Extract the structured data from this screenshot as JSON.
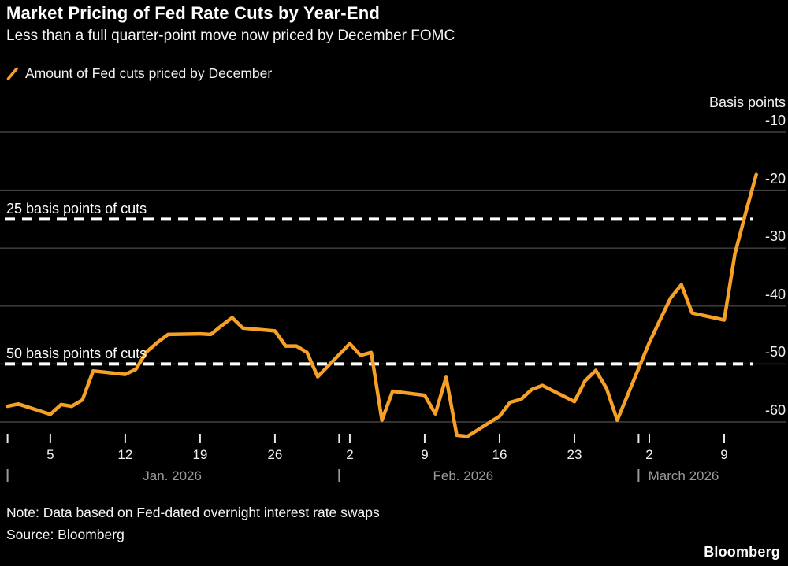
{
  "header": {
    "title": "Market Pricing of Fed Rate Cuts by Year-End",
    "subtitle": "Less than a full quarter-point move now priced by December FOMC"
  },
  "legend": {
    "marker": "orange-slash",
    "label": "Amount of Fed cuts priced by December"
  },
  "footer": {
    "note": "Note: Data based on Fed-dated overnight interest rate swaps",
    "source": "Source: Bloomberg",
    "logo": "Bloomberg"
  },
  "colors": {
    "background": "#000000",
    "line": "#F6A028",
    "grid": "#424242",
    "reference_line": "#FFFFFF",
    "text_primary": "#FFFFFF",
    "text_secondary": "#F0F0F0",
    "text_muted": "#9A9A9A"
  },
  "chart_data": {
    "type": "line",
    "title": "Market Pricing of Fed Rate Cuts by Year-End",
    "y_axis_title": "Basis points",
    "ylim": [
      -65,
      -8
    ],
    "grid": true,
    "y_ticks": [
      {
        "label": "-10",
        "value": -10
      },
      {
        "label": "-20",
        "value": -20
      },
      {
        "label": "-30",
        "value": -30
      },
      {
        "label": "-40",
        "value": -40
      },
      {
        "label": "-50",
        "value": -50
      },
      {
        "label": "-60",
        "value": -60
      }
    ],
    "reference_lines": [
      {
        "label": "25 basis points of cuts",
        "value": -25
      },
      {
        "label": "50 basis points of cuts",
        "value": -50
      }
    ],
    "x_axis": {
      "start": "Jan. 1, 2026",
      "end": "March 12, 2026",
      "week_ticks": [
        {
          "label": "5",
          "day": 4
        },
        {
          "label": "12",
          "day": 11
        },
        {
          "label": "19",
          "day": 18
        },
        {
          "label": "26",
          "day": 25
        },
        {
          "label": "2",
          "day": 32
        },
        {
          "label": "9",
          "day": 39
        },
        {
          "label": "16",
          "day": 46
        },
        {
          "label": "23",
          "day": 53
        },
        {
          "label": "2",
          "day": 60
        },
        {
          "label": "9",
          "day": 67
        }
      ],
      "boundary_tick_days": [
        0,
        31,
        59
      ],
      "months": [
        {
          "label": "Jan. 2026",
          "tick_day": 0,
          "anchor_day": 15.4,
          "align": "center"
        },
        {
          "label": "Feb. 2026",
          "tick_day": 31,
          "anchor_day": 42.6,
          "align": "center"
        },
        {
          "label": "March 2026",
          "tick_day": 59,
          "anchor_day": 59.9,
          "align": "left"
        }
      ]
    },
    "series": [
      {
        "name": "Amount of Fed cuts priced by December",
        "color": "#F6A028",
        "points": [
          {
            "date": "Jan 1",
            "day": 0,
            "bp": -57.3
          },
          {
            "date": "Jan 2",
            "day": 1,
            "bp": -56.9
          },
          {
            "date": "Jan 5",
            "day": 4,
            "bp": -58.7
          },
          {
            "date": "Jan 6",
            "day": 5,
            "bp": -57.0
          },
          {
            "date": "Jan 7",
            "day": 6,
            "bp": -57.3
          },
          {
            "date": "Jan 8",
            "day": 7,
            "bp": -56.2
          },
          {
            "date": "Jan 9",
            "day": 8,
            "bp": -51.2
          },
          {
            "date": "Jan 12",
            "day": 11,
            "bp": -51.8
          },
          {
            "date": "Jan 13",
            "day": 12,
            "bp": -50.9
          },
          {
            "date": "Jan 14",
            "day": 13,
            "bp": -47.9
          },
          {
            "date": "Jan 15",
            "day": 14,
            "bp": -46.3
          },
          {
            "date": "Jan 16",
            "day": 15,
            "bp": -44.9
          },
          {
            "date": "Jan 19",
            "day": 18,
            "bp": -44.8
          },
          {
            "date": "Jan 20",
            "day": 19,
            "bp": -44.9
          },
          {
            "date": "Jan 21",
            "day": 20,
            "bp": -43.4
          },
          {
            "date": "Jan 22",
            "day": 21,
            "bp": -42.0
          },
          {
            "date": "Jan 23",
            "day": 22,
            "bp": -43.8
          },
          {
            "date": "Jan 26",
            "day": 25,
            "bp": -44.3
          },
          {
            "date": "Jan 27",
            "day": 26,
            "bp": -46.9
          },
          {
            "date": "Jan 28",
            "day": 27,
            "bp": -46.9
          },
          {
            "date": "Jan 29",
            "day": 28,
            "bp": -48.0
          },
          {
            "date": "Jan 30",
            "day": 29,
            "bp": -52.2
          },
          {
            "date": "Feb 2",
            "day": 32,
            "bp": -46.5
          },
          {
            "date": "Feb 3",
            "day": 33,
            "bp": -48.5
          },
          {
            "date": "Feb 4",
            "day": 34,
            "bp": -48.0
          },
          {
            "date": "Feb 5",
            "day": 35,
            "bp": -59.7
          },
          {
            "date": "Feb 6",
            "day": 36,
            "bp": -54.7
          },
          {
            "date": "Feb 9",
            "day": 39,
            "bp": -55.4
          },
          {
            "date": "Feb 10",
            "day": 40,
            "bp": -58.6
          },
          {
            "date": "Feb 11",
            "day": 41,
            "bp": -52.3
          },
          {
            "date": "Feb 12",
            "day": 42,
            "bp": -62.3
          },
          {
            "date": "Feb 13",
            "day": 43,
            "bp": -62.5
          },
          {
            "date": "Feb 16",
            "day": 46,
            "bp": -59.0
          },
          {
            "date": "Feb 17",
            "day": 47,
            "bp": -56.6
          },
          {
            "date": "Feb 18",
            "day": 48,
            "bp": -56.1
          },
          {
            "date": "Feb 19",
            "day": 49,
            "bp": -54.4
          },
          {
            "date": "Feb 20",
            "day": 50,
            "bp": -53.7
          },
          {
            "date": "Feb 23",
            "day": 53,
            "bp": -56.5
          },
          {
            "date": "Feb 24",
            "day": 54,
            "bp": -52.9
          },
          {
            "date": "Feb 25",
            "day": 55,
            "bp": -51.1
          },
          {
            "date": "Feb 26",
            "day": 56,
            "bp": -54.2
          },
          {
            "date": "Feb 27",
            "day": 57,
            "bp": -59.7
          },
          {
            "date": "Mar 2",
            "day": 60,
            "bp": -46.3
          },
          {
            "date": "Mar 3",
            "day": 61,
            "bp": -42.4
          },
          {
            "date": "Mar 4",
            "day": 62,
            "bp": -38.6
          },
          {
            "date": "Mar 5",
            "day": 63,
            "bp": -36.3
          },
          {
            "date": "Mar 6",
            "day": 64,
            "bp": -41.2
          },
          {
            "date": "Mar 9",
            "day": 67,
            "bp": -42.4
          },
          {
            "date": "Mar 10",
            "day": 68,
            "bp": -31.0
          },
          {
            "date": "Mar 11",
            "day": 69,
            "bp": -24.0
          },
          {
            "date": "Mar 12",
            "day": 70,
            "bp": -17.3
          }
        ]
      }
    ]
  }
}
